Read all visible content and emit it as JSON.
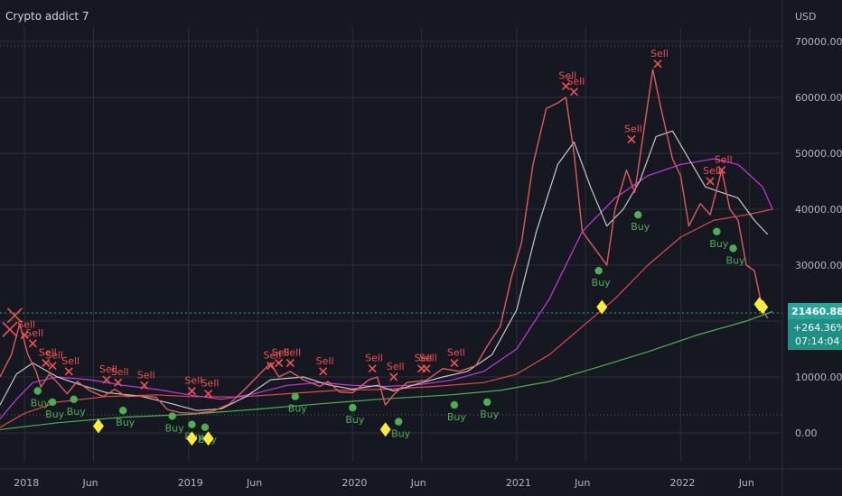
{
  "header": {
    "title": "Crypto addict 7"
  },
  "chart_data": {
    "type": "line",
    "title": "Crypto addict 7",
    "currency": "USD",
    "ylim": [
      -4000,
      70000
    ],
    "y_ticks": [
      "70000.00",
      "60000.00",
      "50000.00",
      "40000.00",
      "30000.00",
      "20000.00",
      "10000.00",
      "0.00"
    ],
    "y_tick_values": [
      70000,
      60000,
      50000,
      40000,
      30000,
      20000,
      10000,
      0
    ],
    "x_ticks": [
      {
        "label": "2018",
        "t": 2018.0
      },
      {
        "label": "Jun",
        "t": 2018.42
      },
      {
        "label": "2019",
        "t": 2019.0
      },
      {
        "label": "Jun",
        "t": 2019.42
      },
      {
        "label": "2020",
        "t": 2020.0
      },
      {
        "label": "Jun",
        "t": 2020.42
      },
      {
        "label": "2021",
        "t": 2021.0
      },
      {
        "label": "Jun",
        "t": 2021.42
      },
      {
        "label": "2022",
        "t": 2022.0
      },
      {
        "label": "Jun",
        "t": 2022.42
      }
    ],
    "xlim": [
      2017.85,
      2022.62
    ],
    "last_price": {
      "price": "21460.88",
      "change": "+264.36%",
      "countdown": "07:14:04",
      "value": 21460.88
    },
    "colors": {
      "background": "#151821",
      "grid": "#2a2e39",
      "price": "#e05a5a",
      "ma_white": "#c8c8c8",
      "ma_magenta": "#c838e0",
      "ma_red": "#e04848",
      "ma_green": "#4caf50",
      "sell": "#f05050",
      "buy": "#4caf50",
      "diamond": "#ffeb3b",
      "price_box": "#26a69a"
    },
    "series": [
      {
        "name": "",
        "color_key": "price",
        "points": [
          [
            2017.85,
            10000
          ],
          [
            2017.92,
            14000
          ],
          [
            2017.97,
            19500
          ],
          [
            2018.02,
            14000
          ],
          [
            2018.07,
            11000
          ],
          [
            2018.1,
            8200
          ],
          [
            2018.15,
            10500
          ],
          [
            2018.2,
            9000
          ],
          [
            2018.26,
            7000
          ],
          [
            2018.32,
            9200
          ],
          [
            2018.4,
            7500
          ],
          [
            2018.48,
            6500
          ],
          [
            2018.55,
            7800
          ],
          [
            2018.62,
            6500
          ],
          [
            2018.7,
            6600
          ],
          [
            2018.8,
            6400
          ],
          [
            2018.87,
            4200
          ],
          [
            2018.95,
            3600
          ],
          [
            2019.05,
            3500
          ],
          [
            2019.15,
            3900
          ],
          [
            2019.25,
            5200
          ],
          [
            2019.35,
            8000
          ],
          [
            2019.45,
            11000
          ],
          [
            2019.5,
            12500
          ],
          [
            2019.55,
            10000
          ],
          [
            2019.62,
            11000
          ],
          [
            2019.7,
            9500
          ],
          [
            2019.8,
            8300
          ],
          [
            2019.85,
            9200
          ],
          [
            2019.92,
            7300
          ],
          [
            2020.0,
            7200
          ],
          [
            2020.1,
            9500
          ],
          [
            2020.15,
            10000
          ],
          [
            2020.2,
            5000
          ],
          [
            2020.25,
            6800
          ],
          [
            2020.33,
            9000
          ],
          [
            2020.45,
            9400
          ],
          [
            2020.55,
            11500
          ],
          [
            2020.65,
            11000
          ],
          [
            2020.75,
            12000
          ],
          [
            2020.82,
            15500
          ],
          [
            2020.9,
            19000
          ],
          [
            2020.97,
            28000
          ],
          [
            2021.03,
            34000
          ],
          [
            2021.1,
            48000
          ],
          [
            2021.18,
            58000
          ],
          [
            2021.25,
            59000
          ],
          [
            2021.3,
            60000
          ],
          [
            2021.35,
            50000
          ],
          [
            2021.4,
            36000
          ],
          [
            2021.45,
            34000
          ],
          [
            2021.5,
            32000
          ],
          [
            2021.55,
            30000
          ],
          [
            2021.6,
            40000
          ],
          [
            2021.67,
            47000
          ],
          [
            2021.72,
            43000
          ],
          [
            2021.78,
            55000
          ],
          [
            2021.83,
            65000
          ],
          [
            2021.88,
            58000
          ],
          [
            2021.95,
            49000
          ],
          [
            2022.0,
            46000
          ],
          [
            2022.05,
            37000
          ],
          [
            2022.12,
            41000
          ],
          [
            2022.18,
            39000
          ],
          [
            2022.25,
            47000
          ],
          [
            2022.3,
            40000
          ],
          [
            2022.35,
            38000
          ],
          [
            2022.4,
            30000
          ],
          [
            2022.45,
            29000
          ],
          [
            2022.5,
            22000
          ],
          [
            2022.53,
            20500
          ]
        ]
      },
      {
        "name": "",
        "color_key": "ma_white",
        "points": [
          [
            2017.85,
            5000
          ],
          [
            2017.95,
            10500
          ],
          [
            2018.05,
            12500
          ],
          [
            2018.2,
            10000
          ],
          [
            2018.35,
            8500
          ],
          [
            2018.5,
            7200
          ],
          [
            2018.7,
            6600
          ],
          [
            2018.9,
            5200
          ],
          [
            2019.05,
            4000
          ],
          [
            2019.2,
            4300
          ],
          [
            2019.35,
            6500
          ],
          [
            2019.5,
            9500
          ],
          [
            2019.7,
            10000
          ],
          [
            2019.85,
            8600
          ],
          [
            2020.0,
            7800
          ],
          [
            2020.15,
            8500
          ],
          [
            2020.25,
            7500
          ],
          [
            2020.4,
            8800
          ],
          [
            2020.55,
            10000
          ],
          [
            2020.7,
            11000
          ],
          [
            2020.85,
            14000
          ],
          [
            2021.0,
            22000
          ],
          [
            2021.12,
            36000
          ],
          [
            2021.25,
            48000
          ],
          [
            2021.35,
            52000
          ],
          [
            2021.45,
            44000
          ],
          [
            2021.55,
            37000
          ],
          [
            2021.65,
            40000
          ],
          [
            2021.75,
            45000
          ],
          [
            2021.85,
            53000
          ],
          [
            2021.95,
            54000
          ],
          [
            2022.05,
            49000
          ],
          [
            2022.15,
            44000
          ],
          [
            2022.25,
            43000
          ],
          [
            2022.35,
            42000
          ],
          [
            2022.45,
            38000
          ],
          [
            2022.53,
            35500
          ]
        ]
      },
      {
        "name": "",
        "color_key": "ma_magenta",
        "points": [
          [
            2017.85,
            2500
          ],
          [
            2017.95,
            6000
          ],
          [
            2018.05,
            9000
          ],
          [
            2018.2,
            10000
          ],
          [
            2018.4,
            9500
          ],
          [
            2018.6,
            8500
          ],
          [
            2018.8,
            7800
          ],
          [
            2019.0,
            6800
          ],
          [
            2019.2,
            6000
          ],
          [
            2019.4,
            7000
          ],
          [
            2019.6,
            8500
          ],
          [
            2019.8,
            9000
          ],
          [
            2020.0,
            8500
          ],
          [
            2020.2,
            8300
          ],
          [
            2020.4,
            8600
          ],
          [
            2020.6,
            9400
          ],
          [
            2020.8,
            11000
          ],
          [
            2021.0,
            15000
          ],
          [
            2021.2,
            24000
          ],
          [
            2021.4,
            36000
          ],
          [
            2021.6,
            42000
          ],
          [
            2021.8,
            46000
          ],
          [
            2022.0,
            48000
          ],
          [
            2022.2,
            49000
          ],
          [
            2022.35,
            48000
          ],
          [
            2022.5,
            44000
          ],
          [
            2022.56,
            40000
          ]
        ]
      },
      {
        "name": "",
        "color_key": "ma_red",
        "points": [
          [
            2017.85,
            1000
          ],
          [
            2018.0,
            3500
          ],
          [
            2018.2,
            5500
          ],
          [
            2018.5,
            6500
          ],
          [
            2018.8,
            6800
          ],
          [
            2019.0,
            6500
          ],
          [
            2019.3,
            6400
          ],
          [
            2019.6,
            7000
          ],
          [
            2019.9,
            7600
          ],
          [
            2020.2,
            7800
          ],
          [
            2020.5,
            8300
          ],
          [
            2020.8,
            9000
          ],
          [
            2021.0,
            10500
          ],
          [
            2021.2,
            14000
          ],
          [
            2021.4,
            19000
          ],
          [
            2021.6,
            24000
          ],
          [
            2021.8,
            30000
          ],
          [
            2022.0,
            35000
          ],
          [
            2022.2,
            38000
          ],
          [
            2022.4,
            39000
          ],
          [
            2022.56,
            40000
          ]
        ]
      },
      {
        "name": "",
        "color_key": "ma_green",
        "points": [
          [
            2017.85,
            600
          ],
          [
            2018.2,
            1800
          ],
          [
            2018.6,
            2800
          ],
          [
            2019.0,
            3300
          ],
          [
            2019.4,
            4200
          ],
          [
            2019.8,
            5200
          ],
          [
            2020.2,
            6100
          ],
          [
            2020.6,
            6800
          ],
          [
            2020.9,
            7600
          ],
          [
            2021.2,
            9200
          ],
          [
            2021.5,
            11800
          ],
          [
            2021.8,
            14500
          ],
          [
            2022.1,
            17500
          ],
          [
            2022.4,
            20000
          ],
          [
            2022.56,
            21700
          ]
        ]
      }
    ],
    "signals": [
      {
        "type": "sell",
        "t": 2018.0,
        "y": 17500,
        "label": "Sell"
      },
      {
        "type": "sell",
        "t": 2018.05,
        "y": 16000,
        "label": "Sell"
      },
      {
        "type": "sell",
        "t": 2018.13,
        "y": 12500,
        "label": "Sell"
      },
      {
        "type": "sell",
        "t": 2018.17,
        "y": 12000,
        "label": "Sell"
      },
      {
        "type": "sell",
        "t": 2018.27,
        "y": 11000,
        "label": "Sell"
      },
      {
        "type": "sell",
        "t": 2018.5,
        "y": 9500,
        "label": "Sell"
      },
      {
        "type": "sell",
        "t": 2018.57,
        "y": 9000,
        "label": "Sell"
      },
      {
        "type": "sell",
        "t": 2018.73,
        "y": 8500,
        "label": "Sell"
      },
      {
        "type": "sell",
        "t": 2019.02,
        "y": 7500,
        "label": "Sell"
      },
      {
        "type": "sell",
        "t": 2019.12,
        "y": 7000,
        "label": "Sell"
      },
      {
        "type": "sell",
        "t": 2019.5,
        "y": 12000,
        "label": "Sell"
      },
      {
        "type": "sell",
        "t": 2019.55,
        "y": 12500,
        "label": "Sell"
      },
      {
        "type": "sell",
        "t": 2019.62,
        "y": 12500,
        "label": "Sell"
      },
      {
        "type": "sell",
        "t": 2019.82,
        "y": 11000,
        "label": "Sell"
      },
      {
        "type": "sell",
        "t": 2020.12,
        "y": 11500,
        "label": "Sell"
      },
      {
        "type": "sell",
        "t": 2020.25,
        "y": 10000,
        "label": "Sell"
      },
      {
        "type": "sell",
        "t": 2020.42,
        "y": 11500,
        "label": "Sell"
      },
      {
        "type": "sell",
        "t": 2020.45,
        "y": 11500,
        "label": "Sell"
      },
      {
        "type": "sell",
        "t": 2020.62,
        "y": 12500,
        "label": "Sell"
      },
      {
        "type": "sell",
        "t": 2021.3,
        "y": 62000,
        "label": "Sell"
      },
      {
        "type": "sell",
        "t": 2021.35,
        "y": 61000,
        "label": "Sell"
      },
      {
        "type": "sell",
        "t": 2021.7,
        "y": 52500,
        "label": "Sell"
      },
      {
        "type": "sell",
        "t": 2021.86,
        "y": 66000,
        "label": "Sell"
      },
      {
        "type": "sell",
        "t": 2022.18,
        "y": 45000,
        "label": "Sell"
      },
      {
        "type": "sell",
        "t": 2022.25,
        "y": 47000,
        "label": "Sell"
      },
      {
        "type": "buy",
        "t": 2018.08,
        "y": 7500,
        "label": "Buy"
      },
      {
        "type": "buy",
        "t": 2018.17,
        "y": 5500,
        "label": "Buy"
      },
      {
        "type": "buy",
        "t": 2018.3,
        "y": 6000,
        "label": "Buy"
      },
      {
        "type": "buy",
        "t": 2018.6,
        "y": 4000,
        "label": "Buy"
      },
      {
        "type": "buy",
        "t": 2018.9,
        "y": 3000,
        "label": "Buy"
      },
      {
        "type": "buy",
        "t": 2019.02,
        "y": 1500,
        "label": "Buy"
      },
      {
        "type": "buy",
        "t": 2019.1,
        "y": 1000,
        "label": "Buy"
      },
      {
        "type": "buy",
        "t": 2019.65,
        "y": 6500,
        "label": "Buy"
      },
      {
        "type": "buy",
        "t": 2020.0,
        "y": 4500,
        "label": "Buy"
      },
      {
        "type": "buy",
        "t": 2020.28,
        "y": 2000,
        "label": "Buy"
      },
      {
        "type": "buy",
        "t": 2020.62,
        "y": 5000,
        "label": "Buy"
      },
      {
        "type": "buy",
        "t": 2020.82,
        "y": 5500,
        "label": "Buy"
      },
      {
        "type": "buy",
        "t": 2021.5,
        "y": 29000,
        "label": "Buy"
      },
      {
        "type": "buy",
        "t": 2021.74,
        "y": 39000,
        "label": "Buy"
      },
      {
        "type": "buy",
        "t": 2022.22,
        "y": 36000,
        "label": "Buy"
      },
      {
        "type": "buy",
        "t": 2022.32,
        "y": 33000,
        "label": "Buy"
      }
    ],
    "diamonds": [
      {
        "t": 2018.45,
        "y": 1200
      },
      {
        "t": 2019.02,
        "y": -1000
      },
      {
        "t": 2019.12,
        "y": -1000
      },
      {
        "t": 2020.2,
        "y": 600
      },
      {
        "t": 2021.52,
        "y": 22500
      },
      {
        "t": 2022.48,
        "y": 23000
      },
      {
        "t": 2022.5,
        "y": 22500
      }
    ],
    "big_x": [
      {
        "t": 2017.94,
        "y": 21000
      },
      {
        "t": 2017.91,
        "y": 18500
      }
    ]
  }
}
